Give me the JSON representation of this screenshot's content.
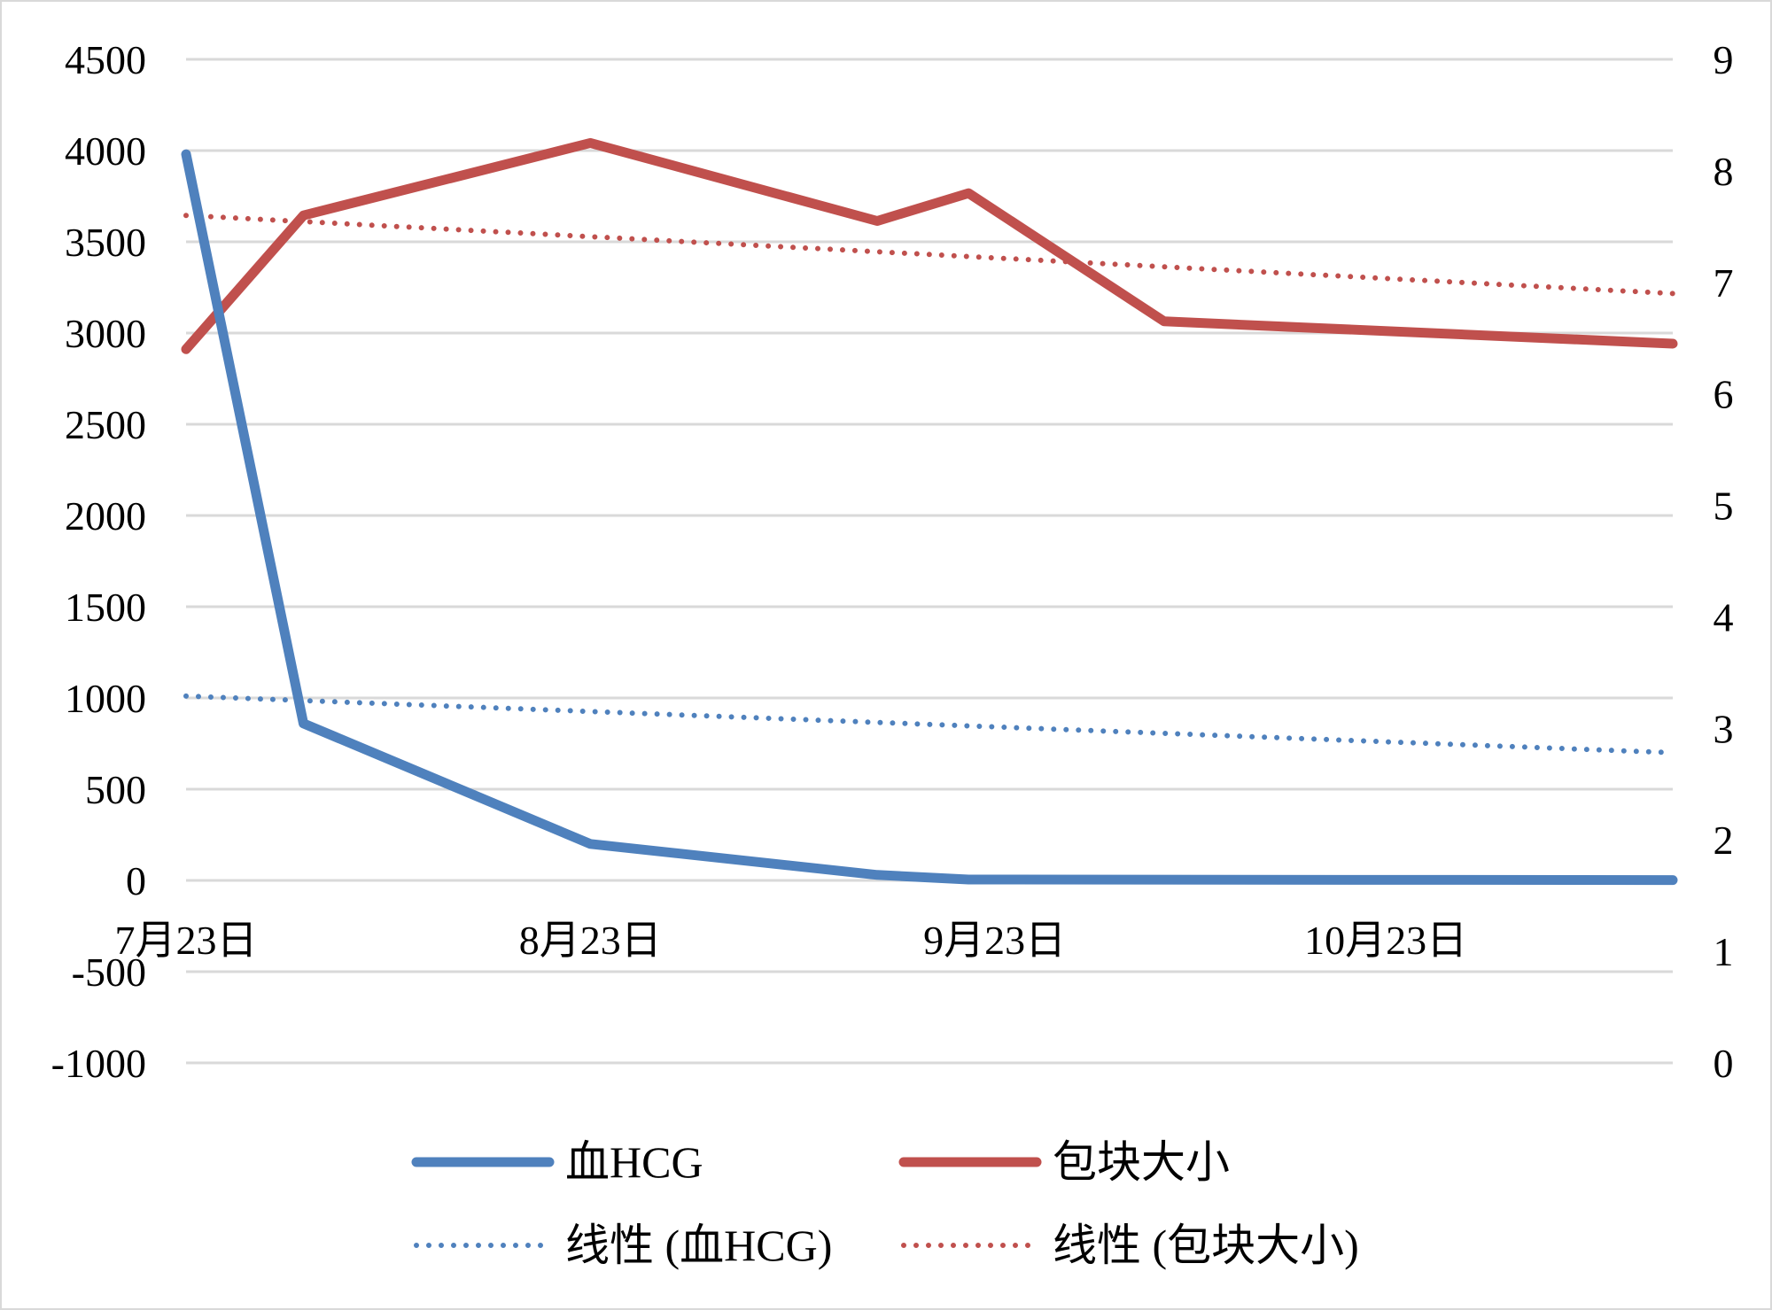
{
  "chart_data": {
    "type": "line",
    "x_axis": {
      "ticks": [
        {
          "date": "2023-07-23",
          "label": "7月23日"
        },
        {
          "date": "2023-08-23",
          "label": "8月23日"
        },
        {
          "date": "2023-09-23",
          "label": "9月23日"
        },
        {
          "date": "2023-10-23",
          "label": "10月23日"
        }
      ],
      "range": [
        "2023-07-23",
        "2023-11-14"
      ]
    },
    "y_left": {
      "range": [
        -1000,
        4500
      ],
      "ticks": [
        -1000,
        -500,
        0,
        500,
        1000,
        1500,
        2000,
        2500,
        3000,
        3500,
        4000,
        4500
      ]
    },
    "y_right": {
      "range": [
        0,
        9
      ],
      "ticks": [
        0,
        1,
        2,
        3,
        4,
        5,
        6,
        7,
        8,
        9
      ]
    },
    "grid": true,
    "legend_position": "bottom",
    "series": [
      {
        "name": "血HCG",
        "axis": "left",
        "style": "solid",
        "color": "#4f81bd",
        "points": [
          {
            "x": "2023-07-23",
            "y": 3980
          },
          {
            "x": "2023-08-01",
            "y": 860
          },
          {
            "x": "2023-08-23",
            "y": 200
          },
          {
            "x": "2023-09-14",
            "y": 30
          },
          {
            "x": "2023-09-21",
            "y": 5
          },
          {
            "x": "2023-11-14",
            "y": 2
          }
        ]
      },
      {
        "name": "包块大小",
        "axis": "right",
        "style": "solid",
        "color": "#c0504d",
        "points": [
          {
            "x": "2023-07-23",
            "y": 6.4
          },
          {
            "x": "2023-08-01",
            "y": 7.6
          },
          {
            "x": "2023-08-23",
            "y": 8.25
          },
          {
            "x": "2023-09-14",
            "y": 7.55
          },
          {
            "x": "2023-09-21",
            "y": 7.8
          },
          {
            "x": "2023-10-06",
            "y": 6.65
          },
          {
            "x": "2023-11-14",
            "y": 6.45
          }
        ]
      },
      {
        "name": "线性 (血HCG)",
        "axis": "left",
        "style": "dotted",
        "color": "#4f81bd",
        "points": [
          {
            "x": "2023-07-23",
            "y": 1010
          },
          {
            "x": "2023-11-14",
            "y": 700
          }
        ]
      },
      {
        "name": "线性 (包块大小)",
        "axis": "right",
        "style": "dotted",
        "color": "#c0504d",
        "points": [
          {
            "x": "2023-07-23",
            "y": 7.6
          },
          {
            "x": "2023-11-14",
            "y": 6.9
          }
        ]
      }
    ]
  }
}
